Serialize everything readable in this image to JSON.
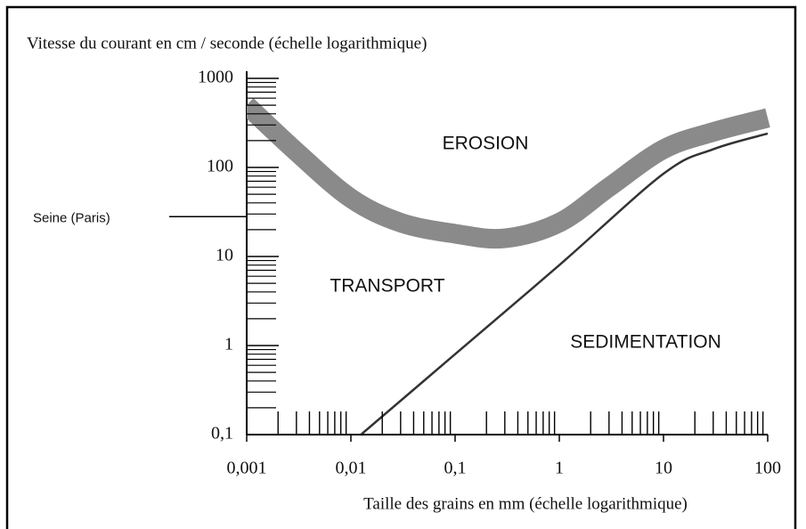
{
  "chart_data": {
    "type": "line",
    "title": "Vitesse du courant en cm / seconde (échelle logarithmique)",
    "x_label": "Taille des grains en mm (échelle logarithmique)",
    "log_x": true,
    "log_y": true,
    "xlim": [
      0.001,
      100
    ],
    "ylim": [
      0.1,
      1000
    ],
    "xticks": [
      {
        "value": 0.001,
        "label": "0,001"
      },
      {
        "value": 0.01,
        "label": "0,01"
      },
      {
        "value": 0.1,
        "label": "0,1"
      },
      1,
      10,
      100
    ],
    "yticks": [
      {
        "value": 0.1,
        "label": "0,1"
      },
      1,
      10,
      100,
      1000
    ],
    "xminorticks": [
      0.002,
      0.003,
      0.004,
      0.005,
      0.006,
      0.007,
      0.008,
      0.009,
      0.02,
      0.03,
      0.04,
      0.05,
      0.06,
      0.07,
      0.08,
      0.09,
      0.2,
      0.3,
      0.4,
      0.5,
      0.6,
      0.7,
      0.8,
      0.9,
      2,
      3,
      4,
      5,
      6,
      7,
      8,
      9,
      20,
      30,
      40,
      50,
      60,
      70,
      80,
      90
    ],
    "yminorticks": [
      0.2,
      0.3,
      0.4,
      0.5,
      0.6,
      0.7,
      0.8,
      0.9,
      2,
      3,
      4,
      5,
      6,
      7,
      8,
      9,
      20,
      30,
      40,
      50,
      60,
      70,
      80,
      90,
      200,
      300,
      400,
      500,
      600,
      700,
      800,
      900
    ],
    "series": [
      {
        "name": "érosion",
        "color": "#8a8a8a",
        "x": [
          0.001,
          0.003,
          0.01,
          0.03,
          0.1,
          0.3,
          1,
          3,
          10,
          30,
          100
        ],
        "values": [
          500,
          150,
          45,
          24,
          18,
          16,
          24,
          60,
          160,
          250,
          360
        ]
      },
      {
        "name": "sédimentation",
        "color": "#333333",
        "x": [
          0.0125,
          0.1,
          1,
          10,
          30,
          100
        ],
        "values": [
          0.1,
          0.8,
          8,
          85,
          160,
          240
        ]
      }
    ],
    "annotations": [
      "EROSION",
      "TRANSPORT",
      "SEDIMENTATION"
    ],
    "reference_line": {
      "label": "Seine (Paris)",
      "value": 28
    }
  }
}
